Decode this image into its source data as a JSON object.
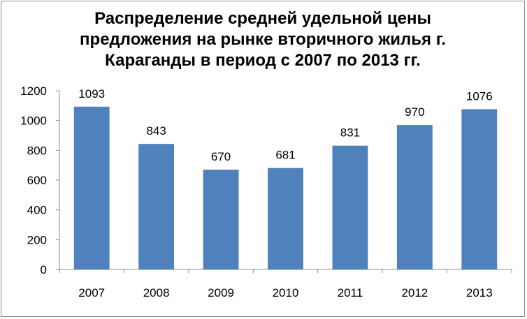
{
  "chart_data": {
    "type": "bar",
    "title_lines": [
      "Распределение средней удельной цены",
      "предложения на рынке вторичного жилья г.",
      "Караганды в период с 2007 по 2013 гг."
    ],
    "categories": [
      "2007",
      "2008",
      "2009",
      "2010",
      "2011",
      "2012",
      "2013"
    ],
    "values": [
      1093,
      843,
      670,
      681,
      831,
      970,
      1076
    ],
    "data_labels": [
      "1093",
      "843",
      "670",
      "681",
      "831",
      "970",
      "1076"
    ],
    "ylim": [
      0,
      1200
    ],
    "yticks": [
      0,
      200,
      400,
      600,
      800,
      1000,
      1200
    ],
    "grid": false,
    "legend": "none",
    "bar_color": "#4f81bd",
    "axis_color": "#8c8c8c"
  }
}
